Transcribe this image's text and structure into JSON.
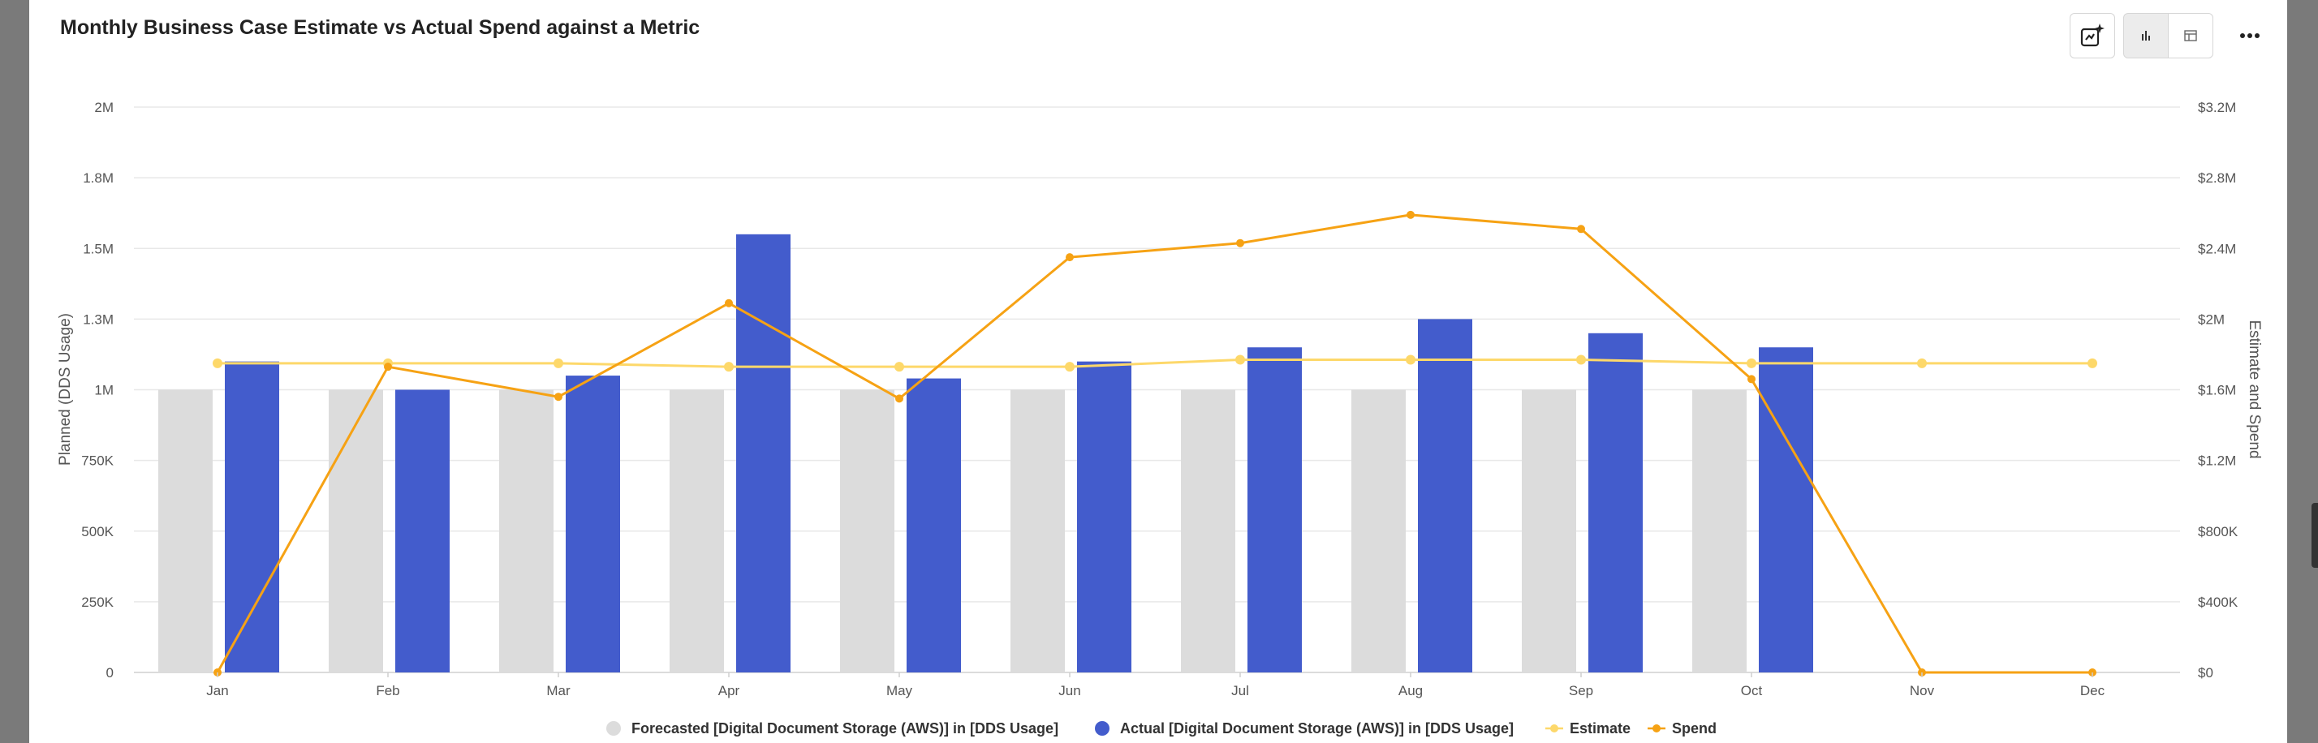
{
  "title": "Monthly Business Case Estimate vs Actual Spend against a Metric",
  "toolbar": {
    "icons": [
      "ai-insight-icon",
      "bar-chart-icon",
      "table-icon",
      "more-icon"
    ],
    "active_view": "chart"
  },
  "colors": {
    "forecast": "#dcdcdc",
    "actual": "#435ccc",
    "estimate": "#fdd86a",
    "spend": "#f6a214",
    "grid": "#e8e8e8",
    "axis_text": "#555555"
  },
  "chart_data": {
    "type": "bar",
    "categories": [
      "Jan",
      "Feb",
      "Mar",
      "Apr",
      "May",
      "Jun",
      "Jul",
      "Aug",
      "Sep",
      "Oct",
      "Nov",
      "Dec"
    ],
    "y_left": {
      "label": "Planned (DDS Usage)",
      "range": [
        0,
        2000000
      ],
      "ticks": [
        "0",
        "250K",
        "500K",
        "750K",
        "1M",
        "1.3M",
        "1.5M",
        "1.8M",
        "2M"
      ]
    },
    "y_right": {
      "label": "Estimate and Spend",
      "range": [
        0,
        3200000
      ],
      "ticks": [
        "$0",
        "$400K",
        "$800K",
        "$1.2M",
        "$1.6M",
        "$2M",
        "$2.4M",
        "$2.8M",
        "$3.2M"
      ]
    },
    "grid": true,
    "legend_position": "bottom",
    "series": [
      {
        "name": "Forecasted [Digital Document Storage (AWS)] in [DDS Usage]",
        "type": "bar",
        "axis": "left",
        "values": [
          1000000,
          1000000,
          1000000,
          1000000,
          1000000,
          1000000,
          1000000,
          1000000,
          1000000,
          1000000,
          null,
          null
        ]
      },
      {
        "name": "Actual [Digital Document Storage (AWS)] in [DDS Usage]",
        "type": "bar",
        "axis": "left",
        "values": [
          1100000,
          1000000,
          1050000,
          1550000,
          1040000,
          1100000,
          1150000,
          1250000,
          1200000,
          1150000,
          null,
          null
        ]
      },
      {
        "name": "Estimate",
        "type": "line",
        "axis": "right",
        "values": [
          1750000,
          1750000,
          1750000,
          1730000,
          1730000,
          1730000,
          1770000,
          1770000,
          1770000,
          1750000,
          1750000,
          1750000
        ]
      },
      {
        "name": "Spend",
        "type": "line",
        "axis": "right",
        "values": [
          0,
          1730000,
          1560000,
          2090000,
          1550000,
          2350000,
          2430000,
          2590000,
          2510000,
          1660000,
          0,
          0
        ]
      }
    ]
  }
}
